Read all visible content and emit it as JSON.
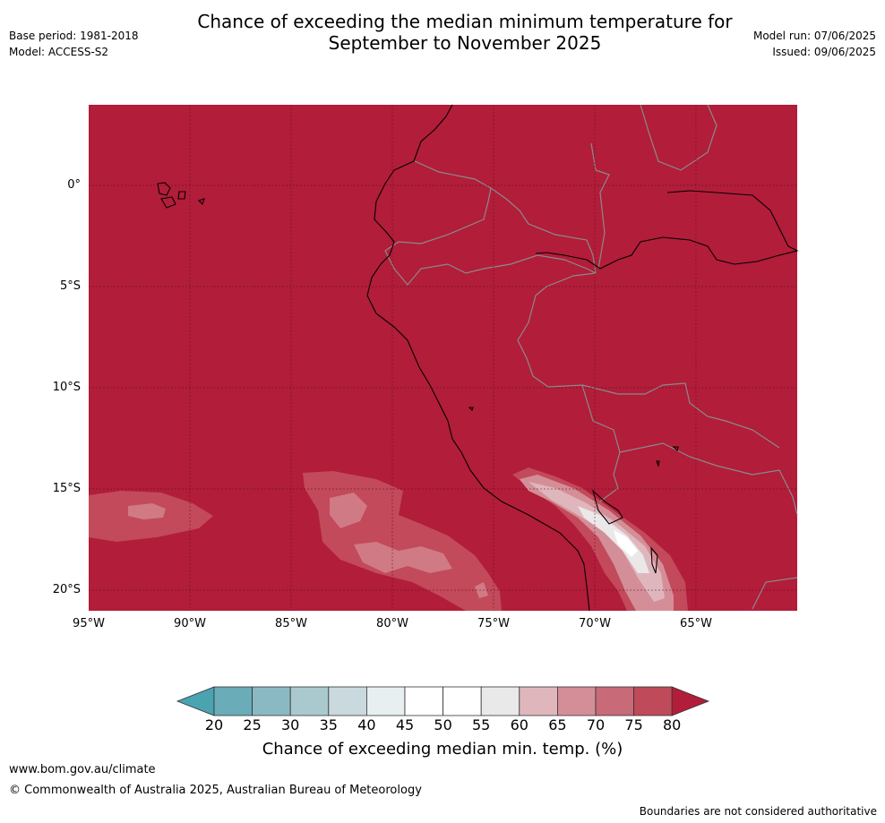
{
  "header": {
    "title_line1": "Chance of exceeding the median minimum temperature for",
    "title_line2": "September to November 2025",
    "base_period": "Base period: 1981-2018",
    "model": "Model: ACCESS-S2",
    "model_run": "Model run: 07/06/2025",
    "issued": "Issued: 09/06/2025"
  },
  "map": {
    "lat_labels": [
      "0°",
      "5°S",
      "10°S",
      "15°S",
      "20°S"
    ],
    "lon_labels": [
      "95°W",
      "90°W",
      "85°W",
      "80°W",
      "75°W",
      "70°W",
      "65°W"
    ],
    "background_fill": "#b21d3a"
  },
  "colorbar": {
    "ticks": [
      "20",
      "25",
      "30",
      "35",
      "40",
      "45",
      "50",
      "55",
      "60",
      "65",
      "70",
      "75",
      "80"
    ],
    "colors": [
      "#6aacb8",
      "#8ab9c4",
      "#a9c9cf",
      "#c9d9dd",
      "#e8eff1",
      "#ffffff",
      "#ffffff",
      "#e9e9e9",
      "#e0b6bd",
      "#d48e98",
      "#c86a77",
      "#bf4a5a"
    ],
    "under_color": "#4aa3b0",
    "over_color": "#b21d3a",
    "label": "Chance of exceeding median min. temp. (%)"
  },
  "footer": {
    "website": "www.bom.gov.au/climate",
    "copyright": "© Commonwealth of Australia 2025, Australian Bureau of Meteorology",
    "disclaimer": "Boundaries are not considered authoritative"
  }
}
